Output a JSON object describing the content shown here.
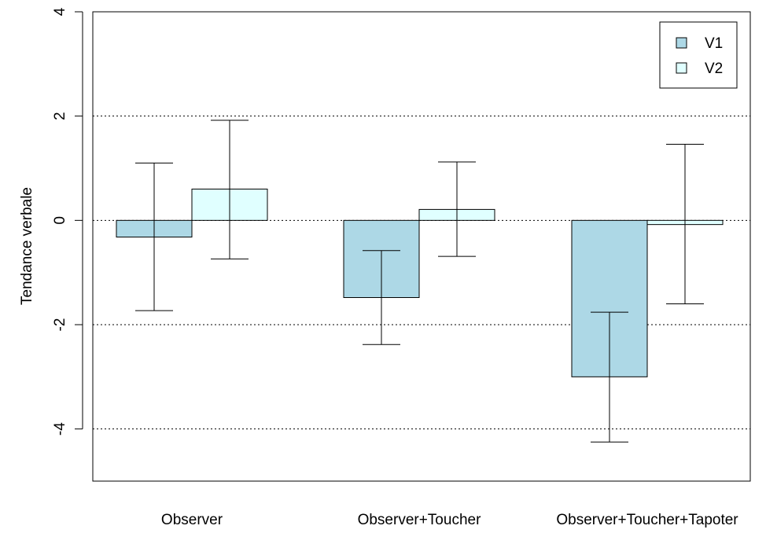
{
  "chart_data": {
    "type": "bar",
    "title": "",
    "xlabel": "",
    "ylabel": "Tendance verbale",
    "categories": [
      "Observer",
      "Observer+Toucher",
      "Observer+Toucher+Tapoter"
    ],
    "series": [
      {
        "name": "V1",
        "color": "#add8e6",
        "values": [
          -0.32,
          -1.48,
          -3.0
        ],
        "error_low": [
          -1.73,
          -2.38,
          -4.25
        ],
        "error_high": [
          1.1,
          -0.58,
          -1.76
        ]
      },
      {
        "name": "V2",
        "color": "#e0ffff",
        "values": [
          0.6,
          0.21,
          -0.08
        ],
        "error_low": [
          -0.74,
          -0.69,
          -1.6
        ],
        "error_high": [
          1.92,
          1.12,
          1.46
        ]
      }
    ],
    "yticks": [
      -4,
      -2,
      0,
      2,
      4
    ],
    "ytick_labels": [
      "-4",
      "-2",
      "0",
      "2",
      "4"
    ],
    "ylim": [
      -5,
      4
    ],
    "grid": "horizontal dotted",
    "legend": "top-right"
  }
}
